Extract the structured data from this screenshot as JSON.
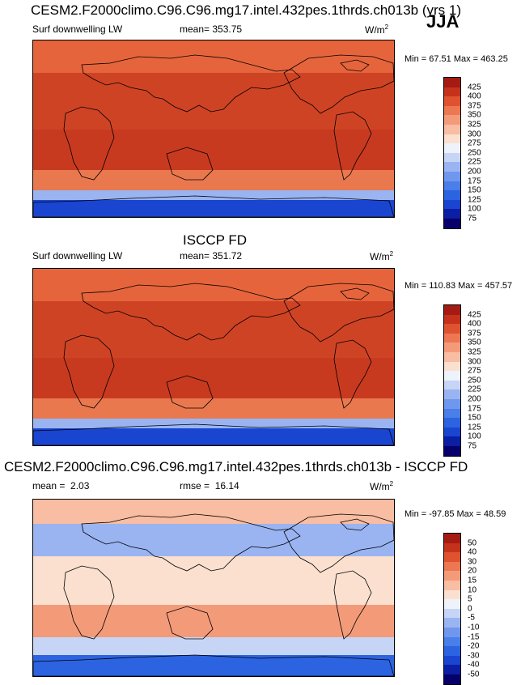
{
  "season": "JJA",
  "units": "W/m",
  "units_sup": "2",
  "panels": [
    {
      "title": "CESM2.F2000climo.C96.C96.mg17.intel.432pes.1thrds.ch013b (yrs 1)",
      "variable": "Surf downwelling LW",
      "stat_label": "mean=",
      "stat_value": "353.75",
      "minmax": "Min =  67.51 Max = 463.25",
      "scale": "abs"
    },
    {
      "title": "ISCCP FD",
      "variable": "Surf downwelling LW",
      "stat_label": "mean=",
      "stat_value": "351.72",
      "minmax": "Min = 110.83 Max = 457.57",
      "scale": "abs"
    },
    {
      "title": "CESM2.F2000climo.C96.C96.mg17.intel.432pes.1thrds.ch013b - ISCCP FD",
      "stat_label": "mean =",
      "stat_value": "2.03",
      "rmse_label": "rmse =",
      "rmse_value": "16.14",
      "minmax": "Min = -97.85 Max =  48.59",
      "scale": "diff"
    }
  ],
  "chart_data": [
    {
      "type": "heatmap",
      "title": "CESM2.F2000climo.C96.C96.mg17.intel.432pes.1thrds.ch013b (yrs 1)",
      "subtitle": "Surf downwelling LW",
      "mean": 353.75,
      "min": 67.51,
      "max": 463.25,
      "contour_levels": [
        75,
        100,
        125,
        150,
        175,
        200,
        225,
        250,
        275,
        300,
        325,
        350,
        375,
        400,
        425
      ]
    },
    {
      "type": "heatmap",
      "title": "ISCCP FD",
      "subtitle": "Surf downwelling LW",
      "mean": 351.72,
      "min": 110.83,
      "max": 457.57,
      "contour_levels": [
        75,
        100,
        125,
        150,
        175,
        200,
        225,
        250,
        275,
        300,
        325,
        350,
        375,
        400,
        425
      ]
    },
    {
      "type": "heatmap",
      "title": "CESM2.F2000climo.C96.C96.mg17.intel.432pes.1thrds.ch013b - ISCCP FD",
      "mean": 2.03,
      "rmse": 16.14,
      "min": -97.85,
      "max": 48.59,
      "contour_levels": [
        -50,
        -40,
        -30,
        -20,
        -15,
        -10,
        -5,
        0,
        5,
        10,
        15,
        20,
        30,
        40,
        50
      ]
    }
  ],
  "colorbars": {
    "abs_colors": [
      "#08006a",
      "#0b1ea4",
      "#1a45d0",
      "#2c63e0",
      "#4a7ee8",
      "#7097ee",
      "#9ab4f2",
      "#c6d5f6",
      "#eef2fa",
      "#fbe0cf",
      "#f8bda2",
      "#f39b79",
      "#ec7752",
      "#df5230",
      "#c5321c",
      "#a51a12"
    ],
    "diff_colors": [
      "#08006a",
      "#0b1ea4",
      "#1a45d0",
      "#2c63e0",
      "#4a7ee8",
      "#7097ee",
      "#9ab4f2",
      "#c6d5f6",
      "#eef2fa",
      "#fbe0cf",
      "#f8bda2",
      "#f39b79",
      "#ec7752",
      "#df5230",
      "#c5321c",
      "#a51a12"
    ]
  }
}
